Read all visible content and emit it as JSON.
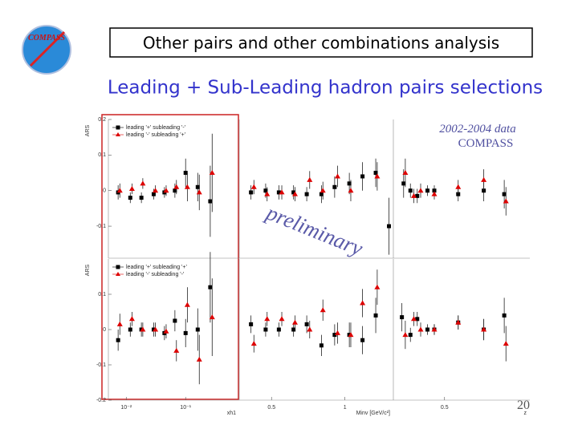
{
  "slide": {
    "title": "Other pairs and other combinations analysis",
    "subtitle": "Leading + Sub-Leading hadron pairs selections",
    "page_number": "20",
    "logo": "COMPASS"
  },
  "annotations": {
    "data_label": "2002-2004 data",
    "experiment": "COMPASS",
    "preliminary": "preliminary"
  },
  "chart_data": [
    {
      "type": "scatter",
      "ylabel": "ARS",
      "xlog": true,
      "xlim": [
        0.005,
        0.8
      ],
      "ylim": [
        -0.19,
        0.2
      ],
      "yticks": [
        0.2,
        0.1,
        0,
        -0.1
      ],
      "series": [
        {
          "name": "leading '+' subleading '-'",
          "color": "#000000",
          "marker": "square",
          "x": [
            0.0073,
            0.0117,
            0.018,
            0.029,
            0.044,
            0.066,
            0.1,
            0.16,
            0.26
          ],
          "values": [
            -0.005,
            -0.02,
            -0.02,
            -0.01,
            -0.005,
            0,
            0.05,
            0.01,
            -0.03
          ],
          "errors": [
            0.02,
            0.015,
            0.015,
            0.015,
            0.015,
            0.02,
            0.04,
            0.04,
            0.1
          ]
        },
        {
          "name": "leading '-' subleading '+'",
          "color": "#dd0000",
          "marker": "triangle",
          "x": [
            0.0078,
            0.0125,
            0.019,
            0.031,
            0.047,
            0.07,
            0.107,
            0.17,
            0.28
          ],
          "values": [
            0,
            0.005,
            0.02,
            0,
            0,
            0.01,
            0.01,
            -0.005,
            0.05
          ],
          "errors": [
            0.02,
            0.015,
            0.015,
            0.015,
            0.015,
            0.02,
            0.04,
            0.05,
            0.11
          ]
        }
      ]
    },
    {
      "type": "scatter",
      "xlim": [
        0.28,
        1.33
      ],
      "ylim": [
        -0.19,
        0.2
      ],
      "series": [
        {
          "color": "#000000",
          "marker": "square",
          "x": [
            0.36,
            0.46,
            0.55,
            0.65,
            0.74,
            0.84,
            0.93,
            1.03,
            1.12,
            1.21,
            1.3
          ],
          "values": [
            -0.005,
            0,
            -0.005,
            -0.005,
            -0.01,
            -0.01,
            0.01,
            0.02,
            0.04,
            0.05,
            -0.1
          ],
          "errors": [
            0.02,
            0.02,
            0.02,
            0.02,
            0.02,
            0.025,
            0.03,
            0.03,
            0.04,
            0.04,
            0.08
          ]
        },
        {
          "color": "#dd0000",
          "marker": "triangle",
          "x": [
            0.38,
            0.47,
            0.57,
            0.66,
            0.76,
            0.85,
            0.95,
            1.04,
            1.22
          ],
          "values": [
            0.01,
            -0.01,
            -0.005,
            -0.01,
            0.03,
            0,
            0.04,
            0,
            0.04
          ],
          "errors": [
            0.02,
            0.02,
            0.02,
            0.02,
            0.025,
            0.025,
            0.03,
            0.03,
            0.04
          ]
        }
      ]
    },
    {
      "type": "scatter",
      "xlim": [
        0.2,
        1.0
      ],
      "ylim": [
        -0.19,
        0.2
      ],
      "series": [
        {
          "color": "#000000",
          "marker": "square",
          "x": [
            0.26,
            0.3,
            0.34,
            0.4,
            0.44,
            0.58,
            0.73,
            0.85
          ],
          "values": [
            0.02,
            0,
            -0.015,
            0,
            0,
            -0.01,
            0,
            -0.01
          ],
          "errors": [
            0.04,
            0.02,
            0.02,
            0.015,
            0.015,
            0.02,
            0.03,
            0.04
          ]
        },
        {
          "color": "#dd0000",
          "marker": "triangle",
          "x": [
            0.27,
            0.32,
            0.36,
            0.44,
            0.58,
            0.73,
            0.86
          ],
          "values": [
            0.05,
            -0.015,
            0,
            -0.01,
            0.01,
            0.03,
            -0.03
          ],
          "errors": [
            0.04,
            0.02,
            0.02,
            0.015,
            0.02,
            0.03,
            0.04
          ]
        }
      ]
    },
    {
      "type": "scatter",
      "ylabel": "ARS",
      "xlabel": "xh1",
      "xlog": true,
      "xlim": [
        0.005,
        0.8
      ],
      "ylim": [
        -0.2,
        0.2
      ],
      "yticks": [
        0.1,
        0,
        -0.1,
        -0.2
      ],
      "xticks": [
        {
          "value": 0.01,
          "label": "10⁻²"
        },
        {
          "value": 0.1,
          "label": "10⁻¹"
        }
      ],
      "series": [
        {
          "name": "leading '+' subleading '+'",
          "color": "#000000",
          "marker": "square",
          "x": [
            0.0073,
            0.0117,
            0.018,
            0.029,
            0.044,
            0.066,
            0.1,
            0.16,
            0.26
          ],
          "values": [
            -0.03,
            0,
            0,
            0,
            -0.01,
            0.025,
            -0.01,
            0,
            0.12
          ],
          "errors": [
            0.03,
            0.02,
            0.02,
            0.02,
            0.02,
            0.03,
            0.04,
            0.06,
            0.1
          ]
        },
        {
          "name": "leading '-' subleading '-'",
          "color": "#dd0000",
          "marker": "triangle",
          "x": [
            0.0078,
            0.0125,
            0.019,
            0.031,
            0.047,
            0.07,
            0.107,
            0.17,
            0.28
          ],
          "values": [
            0.015,
            0.03,
            0,
            0,
            -0.005,
            -0.06,
            0.07,
            -0.085,
            0.035
          ],
          "errors": [
            0.03,
            0.02,
            0.02,
            0.02,
            0.02,
            0.03,
            0.05,
            0.07,
            0.11
          ]
        }
      ]
    },
    {
      "type": "scatter",
      "xlabel": "Minv [GeV/c²]",
      "xlim": [
        0.28,
        1.33
      ],
      "ylim": [
        -0.2,
        0.2
      ],
      "xticks": [
        0.5,
        1
      ],
      "series": [
        {
          "color": "#000000",
          "marker": "square",
          "x": [
            0.36,
            0.46,
            0.55,
            0.65,
            0.74,
            0.84,
            0.93,
            1.03,
            1.12,
            1.21
          ],
          "values": [
            0.015,
            0,
            0,
            0,
            0.015,
            -0.045,
            -0.015,
            -0.015,
            -0.03,
            0.04
          ],
          "errors": [
            0.025,
            0.02,
            0.02,
            0.02,
            0.025,
            0.03,
            0.03,
            0.035,
            0.04,
            0.05
          ]
        },
        {
          "color": "#dd0000",
          "marker": "triangle",
          "x": [
            0.38,
            0.47,
            0.57,
            0.66,
            0.76,
            0.85,
            0.95,
            1.04,
            1.12,
            1.22
          ],
          "values": [
            -0.04,
            0.03,
            0.03,
            0.02,
            0,
            0.055,
            -0.01,
            -0.015,
            0.075,
            0.12
          ],
          "errors": [
            0.025,
            0.02,
            0.02,
            0.02,
            0.025,
            0.03,
            0.03,
            0.035,
            0.04,
            0.05
          ]
        }
      ]
    },
    {
      "type": "scatter",
      "xlabel": "z",
      "xlim": [
        0.2,
        1.0
      ],
      "ylim": [
        -0.2,
        0.2
      ],
      "xticks": [
        0.5
      ],
      "series": [
        {
          "color": "#000000",
          "marker": "square",
          "x": [
            0.25,
            0.3,
            0.34,
            0.4,
            0.44,
            0.58,
            0.73,
            0.85
          ],
          "values": [
            0.035,
            -0.015,
            0.03,
            0,
            0,
            0.02,
            0,
            0.04
          ],
          "errors": [
            0.04,
            0.02,
            0.02,
            0.015,
            0.015,
            0.02,
            0.03,
            0.05
          ]
        },
        {
          "color": "#dd0000",
          "marker": "triangle",
          "x": [
            0.27,
            0.32,
            0.36,
            0.44,
            0.58,
            0.73,
            0.86
          ],
          "values": [
            -0.015,
            0.03,
            0,
            0,
            0.02,
            0,
            -0.04
          ],
          "errors": [
            0.04,
            0.02,
            0.02,
            0.015,
            0.02,
            0.03,
            0.05
          ]
        }
      ]
    }
  ]
}
